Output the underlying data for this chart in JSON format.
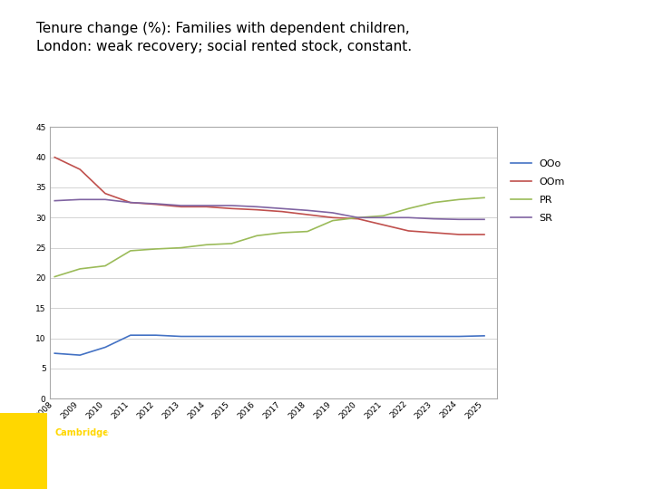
{
  "title_line1": "Tenure change (%): Families with dependent children,",
  "title_line2": "London: weak recovery; social rented stock, constant.",
  "years": [
    2008,
    2009,
    2010,
    2011,
    2012,
    2013,
    2014,
    2015,
    2016,
    2017,
    2018,
    2019,
    2020,
    2021,
    2022,
    2023,
    2024,
    2025
  ],
  "OOo": [
    7.5,
    7.2,
    8.5,
    10.5,
    10.5,
    10.3,
    10.3,
    10.3,
    10.3,
    10.3,
    10.3,
    10.3,
    10.3,
    10.3,
    10.3,
    10.3,
    10.3,
    10.4
  ],
  "OOm": [
    40.0,
    38.0,
    34.0,
    32.5,
    32.2,
    31.8,
    31.8,
    31.5,
    31.3,
    31.0,
    30.5,
    30.0,
    29.8,
    28.8,
    27.8,
    27.5,
    27.2,
    27.2
  ],
  "PR": [
    20.2,
    21.5,
    22.0,
    24.5,
    24.8,
    25.0,
    25.5,
    25.7,
    27.0,
    27.5,
    27.7,
    29.5,
    30.0,
    30.3,
    31.5,
    32.5,
    33.0,
    33.3
  ],
  "SR": [
    32.8,
    33.0,
    33.0,
    32.5,
    32.3,
    32.0,
    32.0,
    32.0,
    31.8,
    31.5,
    31.2,
    30.8,
    30.0,
    30.0,
    30.0,
    29.8,
    29.7,
    29.7
  ],
  "colors": {
    "OOo": "#4472C4",
    "OOm": "#C0504D",
    "PR": "#9BBB59",
    "SR": "#8064A2"
  },
  "ylim": [
    0,
    45
  ],
  "yticks": [
    0,
    5,
    10,
    15,
    20,
    25,
    30,
    35,
    40,
    45
  ],
  "footer_bg": "#7F7F7F",
  "footer_yellow_bg": "#FFD700",
  "footer_text_cambridge": "#FFD700",
  "footer_text_rest": "#FFFFFF",
  "chart_bg": "#FFFFFF",
  "outer_bg": "#FFFFFF",
  "border_color": "#AAAAAA"
}
